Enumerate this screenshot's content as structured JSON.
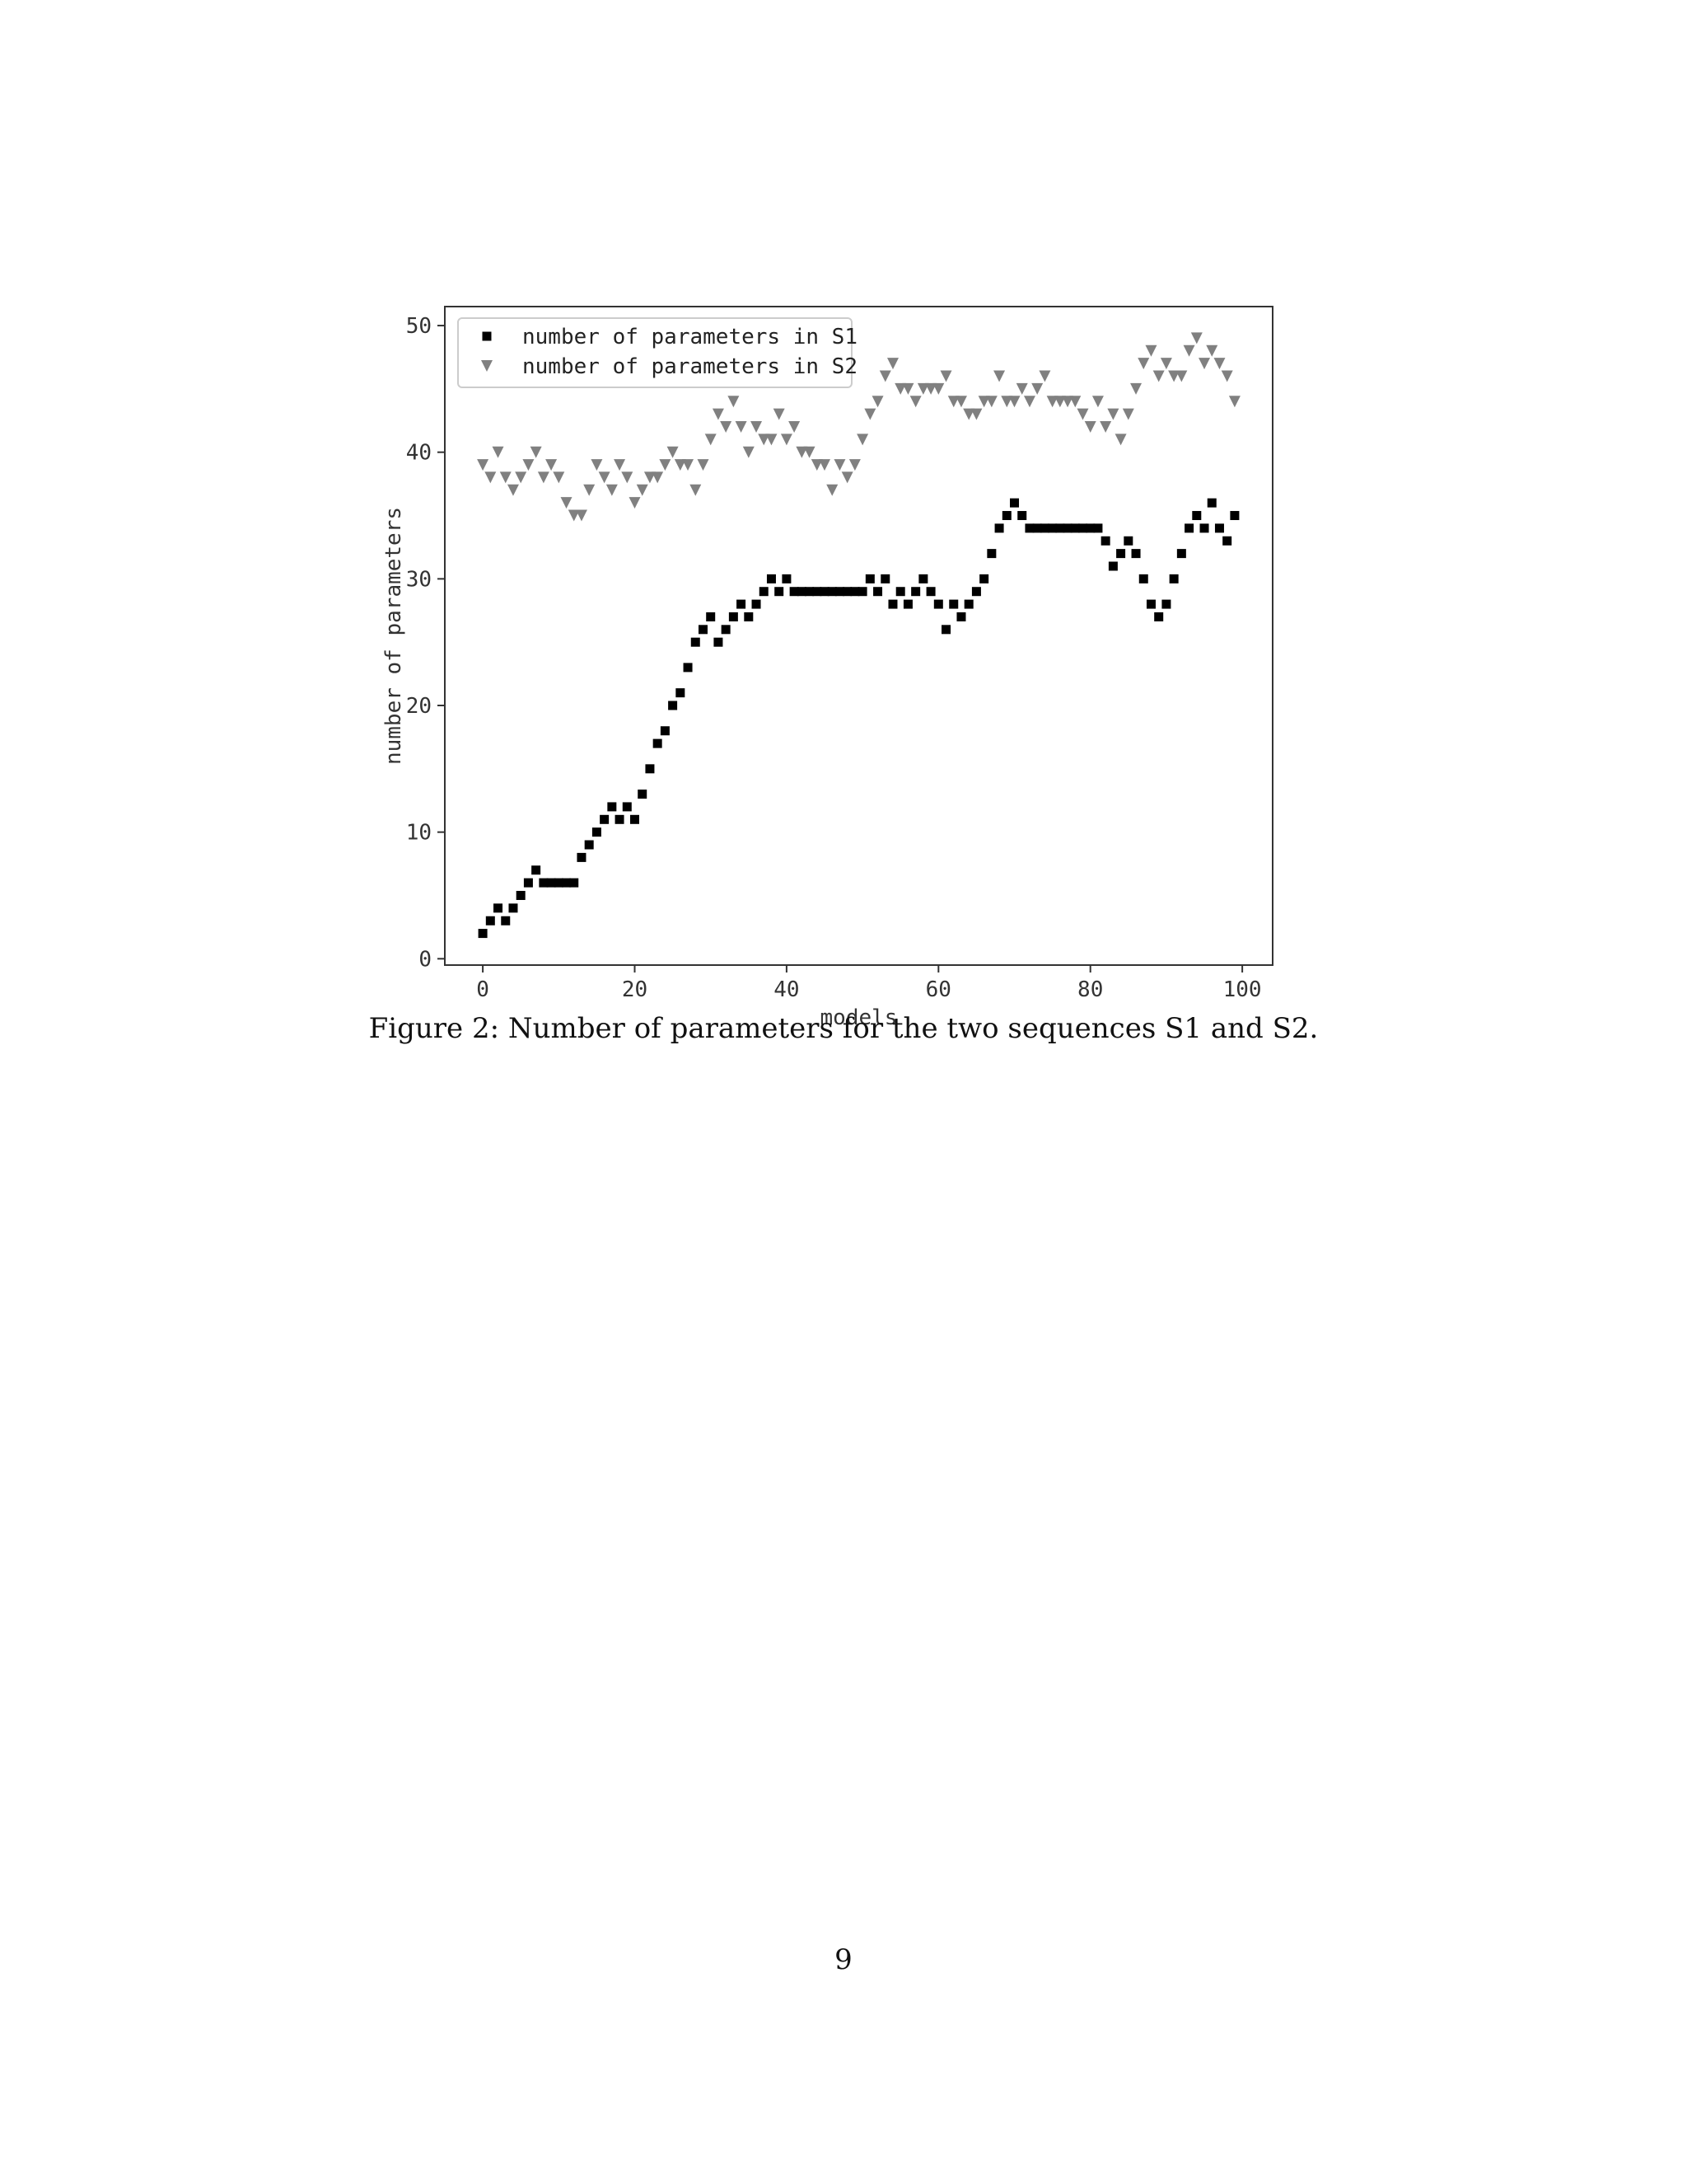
{
  "chart_data": {
    "type": "scatter",
    "xlabel": "models",
    "ylabel": "number of parameters",
    "xlim": [
      -5,
      104
    ],
    "ylim": [
      -0.5,
      51.5
    ],
    "xticks": [
      0,
      20,
      40,
      60,
      80,
      100
    ],
    "yticks": [
      0,
      10,
      20,
      30,
      40,
      50
    ],
    "grid": false,
    "legend": "top-left",
    "series": [
      {
        "name": "number of parameters in S1",
        "marker": "square",
        "color": "#000000",
        "x": [
          0,
          1,
          2,
          3,
          4,
          5,
          6,
          7,
          8,
          9,
          10,
          11,
          12,
          13,
          14,
          15,
          16,
          17,
          18,
          19,
          20,
          21,
          22,
          23,
          24,
          25,
          26,
          27,
          28,
          29,
          30,
          31,
          32,
          33,
          34,
          35,
          36,
          37,
          38,
          39,
          40,
          41,
          42,
          43,
          44,
          45,
          46,
          47,
          48,
          49,
          50,
          51,
          52,
          53,
          54,
          55,
          56,
          57,
          58,
          59,
          60,
          61,
          62,
          63,
          64,
          65,
          66,
          67,
          68,
          69,
          70,
          71,
          72,
          73,
          74,
          75,
          76,
          77,
          78,
          79,
          80,
          81,
          82,
          83,
          84,
          85,
          86,
          87,
          88,
          89,
          90,
          91,
          92,
          93,
          94,
          95,
          96,
          97,
          98,
          99
        ],
        "y": [
          2,
          3,
          4,
          3,
          4,
          5,
          6,
          7,
          6,
          6,
          6,
          6,
          6,
          8,
          9,
          10,
          11,
          12,
          11,
          12,
          11,
          13,
          15,
          17,
          18,
          20,
          21,
          23,
          25,
          26,
          27,
          25,
          26,
          27,
          28,
          27,
          28,
          29,
          30,
          29,
          30,
          29,
          29,
          29,
          29,
          29,
          29,
          29,
          29,
          29,
          29,
          30,
          29,
          30,
          28,
          29,
          28,
          29,
          30,
          29,
          28,
          26,
          28,
          27,
          28,
          29,
          30,
          32,
          34,
          35,
          36,
          35,
          34,
          34,
          34,
          34,
          34,
          34,
          34,
          34,
          34,
          34,
          33,
          31,
          32,
          33,
          32,
          30,
          28,
          27,
          28,
          30,
          32,
          34,
          35,
          34,
          36,
          34,
          33,
          35
        ]
      },
      {
        "name": "number of parameters in S2",
        "marker": "triangle-down",
        "color": "#808080",
        "x": [
          0,
          1,
          2,
          3,
          4,
          5,
          6,
          7,
          8,
          9,
          10,
          11,
          12,
          13,
          14,
          15,
          16,
          17,
          18,
          19,
          20,
          21,
          22,
          23,
          24,
          25,
          26,
          27,
          28,
          29,
          30,
          31,
          32,
          33,
          34,
          35,
          36,
          37,
          38,
          39,
          40,
          41,
          42,
          43,
          44,
          45,
          46,
          47,
          48,
          49,
          50,
          51,
          52,
          53,
          54,
          55,
          56,
          57,
          58,
          59,
          60,
          61,
          62,
          63,
          64,
          65,
          66,
          67,
          68,
          69,
          70,
          71,
          72,
          73,
          74,
          75,
          76,
          77,
          78,
          79,
          80,
          81,
          82,
          83,
          84,
          85,
          86,
          87,
          88,
          89,
          90,
          91,
          92,
          93,
          94,
          95,
          96,
          97,
          98,
          99
        ],
        "y": [
          39,
          38,
          40,
          38,
          37,
          38,
          39,
          40,
          38,
          39,
          38,
          36,
          35,
          35,
          37,
          39,
          38,
          37,
          39,
          38,
          36,
          37,
          38,
          38,
          39,
          40,
          39,
          39,
          37,
          39,
          41,
          43,
          42,
          44,
          42,
          40,
          42,
          41,
          41,
          43,
          41,
          42,
          40,
          40,
          39,
          39,
          37,
          39,
          38,
          39,
          41,
          43,
          44,
          46,
          47,
          45,
          45,
          44,
          45,
          45,
          45,
          46,
          44,
          44,
          43,
          43,
          44,
          44,
          46,
          44,
          44,
          45,
          44,
          45,
          46,
          44,
          44,
          44,
          44,
          43,
          42,
          44,
          42,
          43,
          41,
          43,
          45,
          47,
          48,
          46,
          47,
          46,
          46,
          48,
          49,
          47,
          48,
          47,
          46,
          44
        ]
      }
    ]
  },
  "figure": {
    "caption": "Figure 2: Number of parameters for the two sequences S1 and S2.",
    "page_number": "9"
  }
}
